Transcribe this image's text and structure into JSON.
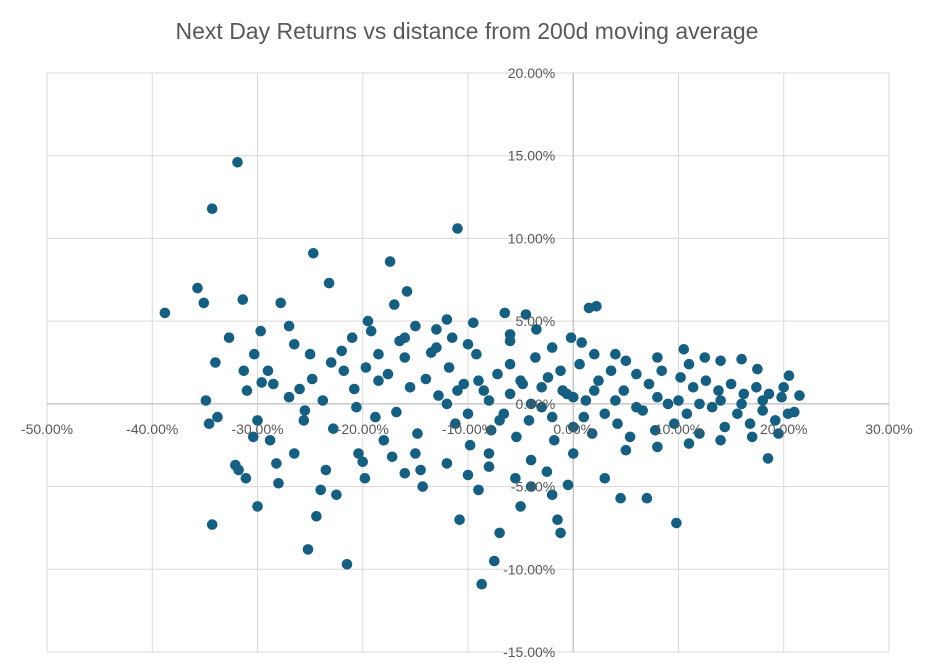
{
  "chart_data": {
    "type": "scatter",
    "title": "Next Day Returns vs distance from 200d moving average",
    "xlabel": "",
    "ylabel": "",
    "xlim": [
      -0.5,
      0.3
    ],
    "ylim": [
      -0.15,
      0.2
    ],
    "x_ticks": [
      -0.5,
      -0.4,
      -0.3,
      -0.2,
      -0.1,
      0.0,
      0.1,
      0.2,
      0.3
    ],
    "x_tick_labels": [
      "-50.00%",
      "-40.00%",
      "-30.00%",
      "-20.00%",
      "-10.00%",
      "0.00%",
      "10.00%",
      "20.00%",
      "30.00%"
    ],
    "y_ticks": [
      -0.15,
      -0.1,
      -0.05,
      0.0,
      0.05,
      0.1,
      0.15,
      0.2
    ],
    "y_tick_labels": [
      "-15.00%",
      "-10.00%",
      "-5.00%",
      "0.00%",
      "5.00%",
      "10.00%",
      "15.00%",
      "20.00%"
    ],
    "grid": true,
    "legend": "none",
    "color": "#156082",
    "series": [
      {
        "values": [
          [
            -0.388,
            0.055
          ],
          [
            -0.357,
            0.07
          ],
          [
            -0.351,
            0.061
          ],
          [
            -0.343,
            0.118
          ],
          [
            -0.34,
            0.025
          ],
          [
            -0.349,
            0.002
          ],
          [
            -0.346,
            -0.012
          ],
          [
            -0.338,
            -0.008
          ],
          [
            -0.343,
            -0.073
          ],
          [
            -0.319,
            0.146
          ],
          [
            -0.314,
            0.063
          ],
          [
            -0.327,
            0.04
          ],
          [
            -0.313,
            0.02
          ],
          [
            -0.31,
            0.008
          ],
          [
            -0.321,
            -0.037
          ],
          [
            -0.318,
            -0.04
          ],
          [
            -0.311,
            -0.045
          ],
          [
            -0.303,
            0.03
          ],
          [
            -0.297,
            0.044
          ],
          [
            -0.3,
            -0.062
          ],
          [
            -0.296,
            0.013
          ],
          [
            -0.304,
            -0.02
          ],
          [
            -0.288,
            -0.022
          ],
          [
            -0.282,
            -0.036
          ],
          [
            -0.28,
            -0.048
          ],
          [
            -0.278,
            0.061
          ],
          [
            -0.27,
            0.047
          ],
          [
            -0.265,
            0.036
          ],
          [
            -0.26,
            0.009
          ],
          [
            -0.256,
            -0.01
          ],
          [
            -0.252,
            -0.088
          ],
          [
            -0.247,
            0.091
          ],
          [
            -0.24,
            -0.052
          ],
          [
            -0.244,
            -0.068
          ],
          [
            -0.232,
            0.073
          ],
          [
            -0.23,
            0.025
          ],
          [
            -0.225,
            -0.055
          ],
          [
            -0.22,
            0.032
          ],
          [
            -0.215,
            -0.097
          ],
          [
            -0.208,
            0.009
          ],
          [
            -0.204,
            -0.03
          ],
          [
            -0.198,
            -0.045
          ],
          [
            -0.195,
            0.05
          ],
          [
            -0.192,
            0.044
          ],
          [
            -0.185,
            0.014
          ],
          [
            -0.18,
            -0.022
          ],
          [
            -0.174,
            0.086
          ],
          [
            -0.17,
            0.06
          ],
          [
            -0.165,
            0.038
          ],
          [
            -0.16,
            -0.042
          ],
          [
            -0.158,
            0.068
          ],
          [
            -0.15,
            0.047
          ],
          [
            -0.143,
            -0.05
          ],
          [
            -0.135,
            0.031
          ],
          [
            -0.13,
            0.045
          ],
          [
            -0.12,
            0.051
          ],
          [
            -0.115,
            0.04
          ],
          [
            -0.11,
            0.106
          ],
          [
            -0.108,
            -0.07
          ],
          [
            -0.1,
            -0.043
          ],
          [
            -0.095,
            0.049
          ],
          [
            -0.09,
            -0.052
          ],
          [
            -0.087,
            -0.109
          ],
          [
            -0.08,
            -0.03
          ],
          [
            -0.075,
            -0.095
          ],
          [
            -0.07,
            -0.078
          ],
          [
            -0.065,
            0.055
          ],
          [
            -0.06,
            0.042
          ],
          [
            -0.055,
            -0.045
          ],
          [
            -0.05,
            -0.062
          ],
          [
            -0.045,
            0.054
          ],
          [
            -0.04,
            -0.05
          ],
          [
            -0.035,
            0.045
          ],
          [
            -0.025,
            -0.041
          ],
          [
            -0.02,
            -0.055
          ],
          [
            -0.015,
            -0.07
          ],
          [
            -0.012,
            -0.078
          ],
          [
            -0.005,
            -0.049
          ],
          [
            -0.002,
            0.04
          ],
          [
            0.008,
            0.037
          ],
          [
            0.015,
            0.058
          ],
          [
            0.022,
            0.059
          ],
          [
            0.03,
            -0.045
          ],
          [
            0.04,
            0.03
          ],
          [
            0.045,
            -0.057
          ],
          [
            0.07,
            -0.057
          ],
          [
            0.098,
            -0.072
          ],
          [
            0.105,
            0.033
          ],
          [
            0.125,
            0.028
          ],
          [
            0.14,
            0.026
          ],
          [
            0.16,
            0.027
          ],
          [
            0.175,
            0.021
          ],
          [
            0.185,
            -0.033
          ],
          [
            0.195,
            -0.018
          ],
          [
            0.205,
            0.017
          ],
          [
            0.21,
            -0.005
          ],
          [
            0.215,
            0.005
          ],
          [
            0.2,
            0.01
          ],
          [
            -0.285,
            0.012
          ],
          [
            -0.27,
            0.004
          ],
          [
            -0.255,
            -0.004
          ],
          [
            -0.248,
            0.015
          ],
          [
            -0.238,
            0.002
          ],
          [
            -0.228,
            -0.015
          ],
          [
            -0.218,
            0.02
          ],
          [
            -0.206,
            -0.002
          ],
          [
            -0.197,
            0.022
          ],
          [
            -0.188,
            -0.008
          ],
          [
            -0.176,
            0.018
          ],
          [
            -0.168,
            -0.005
          ],
          [
            -0.155,
            0.01
          ],
          [
            -0.148,
            -0.018
          ],
          [
            -0.14,
            0.015
          ],
          [
            -0.128,
            0.005
          ],
          [
            -0.118,
            0.022
          ],
          [
            -0.112,
            -0.012
          ],
          [
            -0.104,
            0.012
          ],
          [
            -0.098,
            -0.025
          ],
          [
            -0.092,
            0.03
          ],
          [
            -0.085,
            0.008
          ],
          [
            -0.078,
            -0.016
          ],
          [
            -0.072,
            0.018
          ],
          [
            -0.066,
            -0.006
          ],
          [
            -0.06,
            0.024
          ],
          [
            -0.054,
            -0.02
          ],
          [
            -0.048,
            0.012
          ],
          [
            -0.042,
            -0.01
          ],
          [
            -0.036,
            0.028
          ],
          [
            -0.03,
            -0.002
          ],
          [
            -0.024,
            0.016
          ],
          [
            -0.018,
            -0.022
          ],
          [
            -0.012,
            0.02
          ],
          [
            -0.006,
            0.006
          ],
          [
            0.0,
            -0.014
          ],
          [
            0.006,
            0.024
          ],
          [
            0.012,
            0.002
          ],
          [
            0.018,
            -0.018
          ],
          [
            0.024,
            0.014
          ],
          [
            0.03,
            -0.006
          ],
          [
            0.036,
            0.02
          ],
          [
            0.042,
            -0.012
          ],
          [
            0.048,
            0.008
          ],
          [
            0.054,
            -0.02
          ],
          [
            0.06,
            0.018
          ],
          [
            0.066,
            -0.004
          ],
          [
            0.072,
            0.012
          ],
          [
            0.078,
            -0.016
          ],
          [
            0.084,
            0.02
          ],
          [
            0.09,
            0.0
          ],
          [
            0.096,
            -0.012
          ],
          [
            0.102,
            0.016
          ],
          [
            0.108,
            -0.006
          ],
          [
            0.114,
            0.01
          ],
          [
            0.12,
            -0.018
          ],
          [
            0.126,
            0.014
          ],
          [
            0.132,
            -0.002
          ],
          [
            0.138,
            0.008
          ],
          [
            0.144,
            -0.014
          ],
          [
            0.15,
            0.012
          ],
          [
            0.156,
            -0.006
          ],
          [
            0.162,
            0.006
          ],
          [
            0.168,
            -0.012
          ],
          [
            0.174,
            0.01
          ],
          [
            0.18,
            -0.004
          ],
          [
            0.186,
            0.006
          ],
          [
            0.192,
            -0.01
          ],
          [
            0.198,
            0.004
          ],
          [
            0.204,
            -0.006
          ],
          [
            -0.12,
            0.0
          ],
          [
            -0.11,
            0.008
          ],
          [
            -0.1,
            -0.006
          ],
          [
            -0.09,
            0.014
          ],
          [
            -0.08,
            0.002
          ],
          [
            -0.07,
            -0.01
          ],
          [
            -0.06,
            0.006
          ],
          [
            -0.05,
            0.014
          ],
          [
            -0.04,
            0.0
          ],
          [
            -0.03,
            0.01
          ],
          [
            -0.02,
            -0.008
          ],
          [
            -0.01,
            0.008
          ],
          [
            0.0,
            0.004
          ],
          [
            0.01,
            -0.008
          ],
          [
            0.02,
            0.008
          ],
          [
            0.04,
            0.002
          ],
          [
            0.06,
            -0.002
          ],
          [
            0.08,
            0.004
          ],
          [
            0.1,
            0.002
          ],
          [
            0.12,
            0.0
          ],
          [
            0.14,
            0.002
          ],
          [
            0.16,
            0.0
          ],
          [
            0.18,
            0.002
          ],
          [
            -0.16,
            0.028
          ],
          [
            -0.15,
            -0.03
          ],
          [
            -0.13,
            0.034
          ],
          [
            -0.12,
            -0.036
          ],
          [
            -0.1,
            0.036
          ],
          [
            -0.08,
            -0.038
          ],
          [
            -0.06,
            0.038
          ],
          [
            -0.04,
            -0.034
          ],
          [
            -0.02,
            0.034
          ],
          [
            0.0,
            -0.03
          ],
          [
            0.02,
            0.03
          ],
          [
            0.05,
            0.026
          ],
          [
            0.05,
            -0.028
          ],
          [
            0.08,
            0.028
          ],
          [
            0.08,
            -0.026
          ],
          [
            0.11,
            0.024
          ],
          [
            0.11,
            -0.024
          ],
          [
            0.14,
            -0.022
          ],
          [
            0.17,
            -0.02
          ],
          [
            -0.3,
            -0.01
          ],
          [
            -0.29,
            0.02
          ],
          [
            -0.265,
            -0.03
          ],
          [
            -0.25,
            0.03
          ],
          [
            -0.235,
            -0.04
          ],
          [
            -0.21,
            0.04
          ],
          [
            -0.2,
            -0.035
          ],
          [
            -0.185,
            0.03
          ],
          [
            -0.172,
            -0.032
          ],
          [
            -0.16,
            0.04
          ],
          [
            -0.145,
            -0.04
          ]
        ]
      }
    ]
  }
}
